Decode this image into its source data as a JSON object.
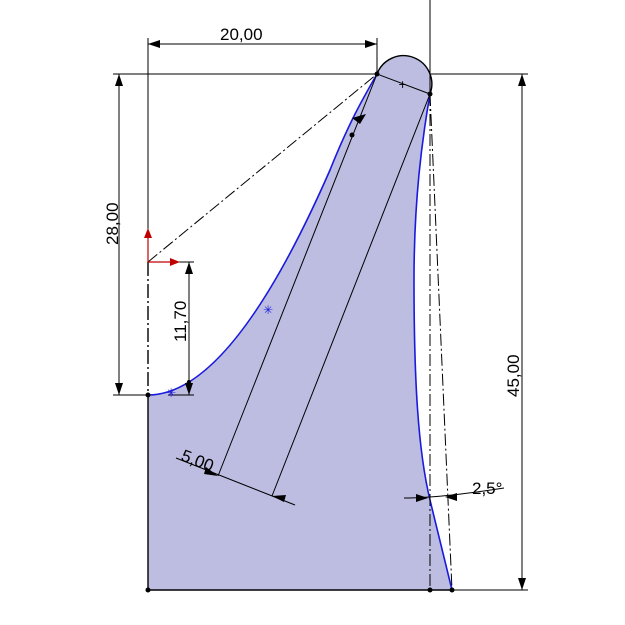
{
  "colors": {
    "region_fill": "#bcbde0",
    "profile_stroke": "#1a1adc",
    "dimension_stroke": "#000000",
    "origin_arrow": "#c00000"
  },
  "dimensions": {
    "top_width": "20,00",
    "left_height": "28,00",
    "inner_height": "11,70",
    "right_height": "45,00",
    "offset": "5,00",
    "angle": "2,5°"
  }
}
